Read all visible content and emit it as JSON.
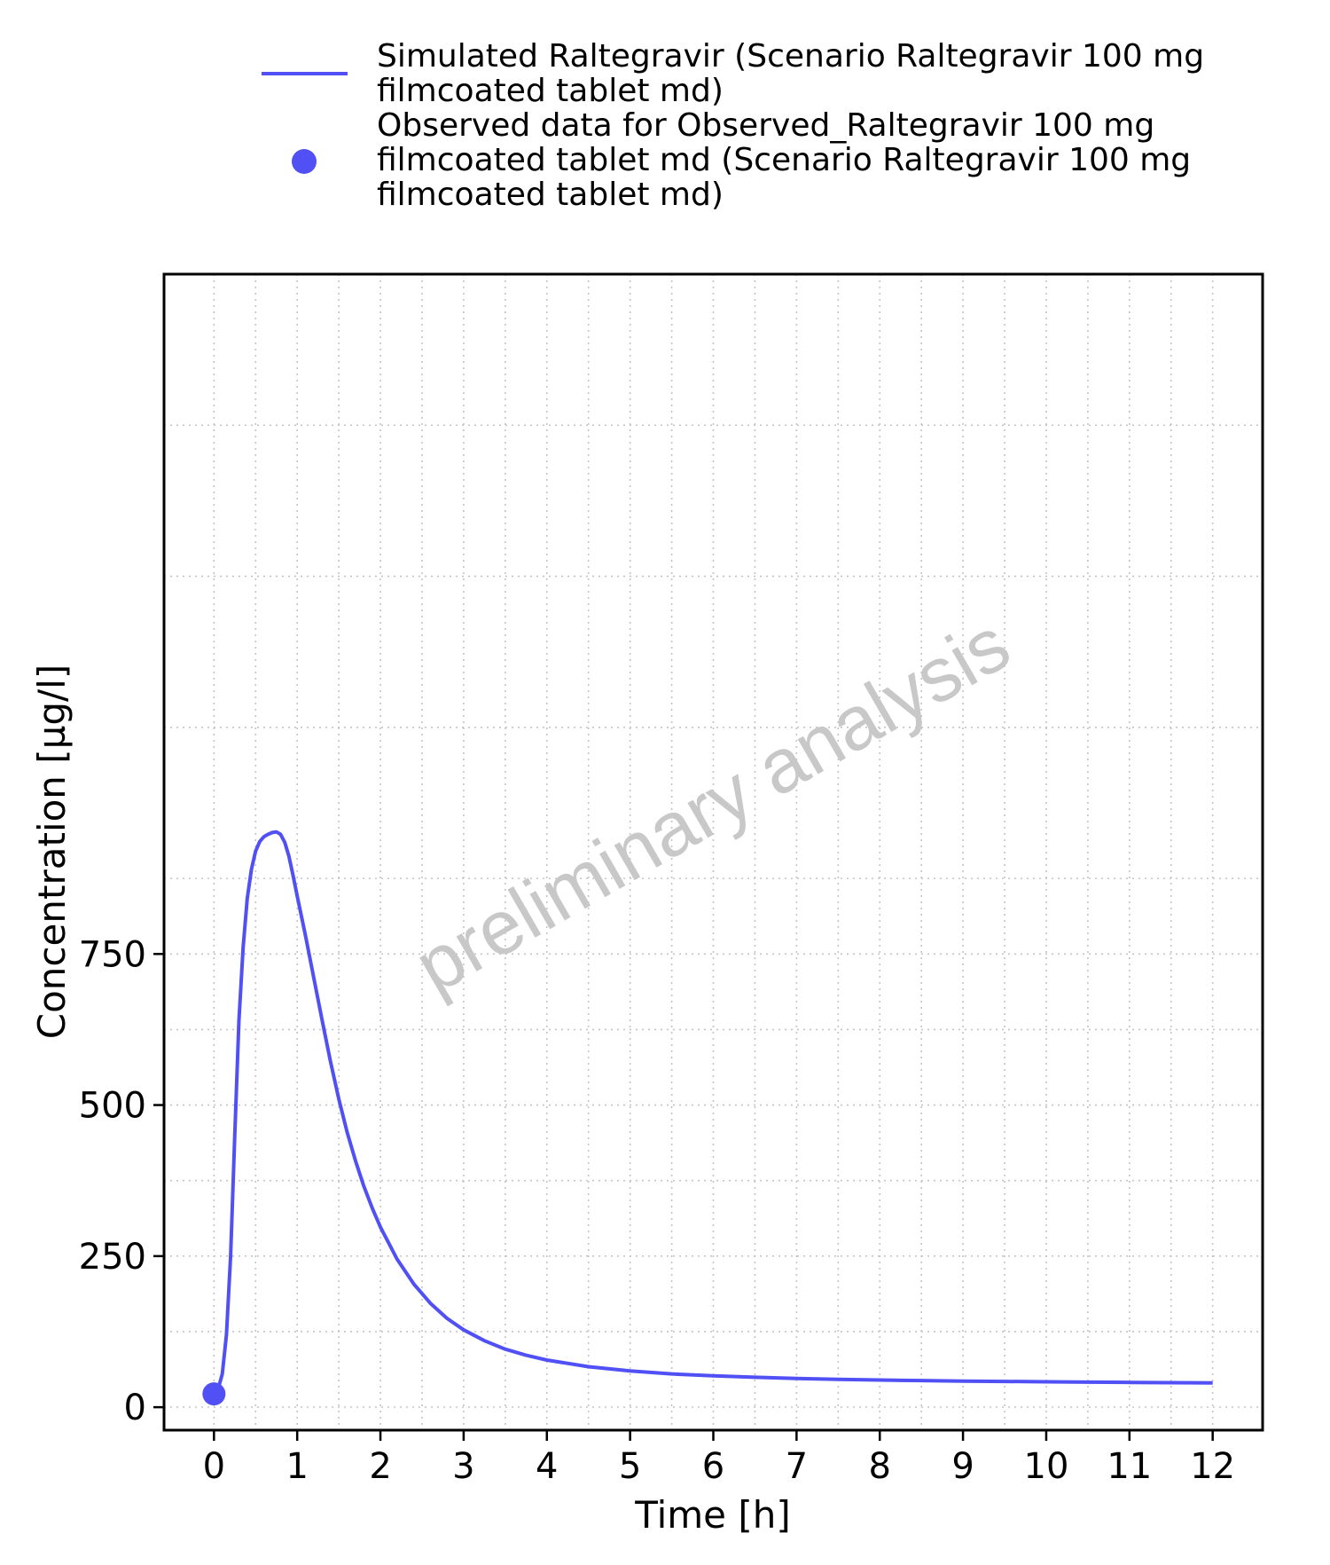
{
  "chart_data": {
    "type": "line",
    "xlabel": "Time [h]",
    "ylabel": "Concentration [µg/l]",
    "xlim": [
      -0.6,
      12.6
    ],
    "ylim": [
      -38,
      1875
    ],
    "x_ticks": [
      0,
      1,
      2,
      3,
      4,
      5,
      6,
      7,
      8,
      9,
      10,
      11,
      12
    ],
    "y_ticks": [
      0,
      250,
      500,
      750
    ],
    "grid": true,
    "legend_position": "top",
    "watermark": "preliminary analysis",
    "series": [
      {
        "name": "Simulated Raltegravir (Scenario Raltegravir 100 mg\nfilmcoated tablet md)",
        "kind": "line",
        "color": "#5050f5",
        "x": [
          0,
          0.05,
          0.1,
          0.15,
          0.2,
          0.25,
          0.3,
          0.35,
          0.4,
          0.45,
          0.5,
          0.55,
          0.6,
          0.65,
          0.7,
          0.75,
          0.8,
          0.85,
          0.9,
          0.95,
          1.0,
          1.1,
          1.2,
          1.3,
          1.4,
          1.5,
          1.6,
          1.7,
          1.8,
          1.9,
          2.0,
          2.2,
          2.4,
          2.6,
          2.8,
          3.0,
          3.25,
          3.5,
          3.75,
          4.0,
          4.5,
          5.0,
          5.5,
          6.0,
          6.5,
          7.0,
          7.5,
          8.0,
          8.5,
          9.0,
          9.5,
          10.0,
          10.5,
          11.0,
          11.5,
          12.0
        ],
        "y": [
          22,
          30,
          55,
          120,
          250,
          450,
          640,
          760,
          842,
          890,
          920,
          936,
          944,
          948,
          951,
          952,
          948,
          935,
          912,
          880,
          846,
          780,
          710,
          640,
          572,
          510,
          455,
          408,
          366,
          330,
          298,
          245,
          204,
          172,
          147,
          128,
          110,
          96,
          86,
          78,
          67,
          60,
          55,
          52,
          49.5,
          47.5,
          46,
          45,
          44,
          43.2,
          42.6,
          42,
          41.5,
          41,
          40.6,
          40.2
        ]
      },
      {
        "name": "Observed data for Observed_Raltegravir 100 mg\nfilmcoated tablet md (Scenario Raltegravir 100 mg\nfilmcoated tablet md)",
        "kind": "scatter",
        "color": "#5050f5",
        "x": [
          0
        ],
        "y": [
          22
        ]
      }
    ]
  }
}
